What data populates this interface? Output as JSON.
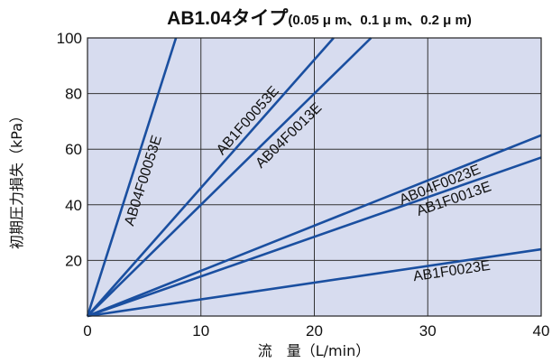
{
  "chart_data": {
    "type": "line",
    "title": "AB1.04タイプ",
    "subtitle": "(0.05 μ m、0.1 μ m、0.2 μ m)",
    "xlabel": "流　量（L/min）",
    "ylabel": "初期圧力損失（kPa）",
    "xlim": [
      0,
      40
    ],
    "ylim": [
      0,
      100
    ],
    "x_ticks": [
      "0",
      "10",
      "20",
      "30",
      "40"
    ],
    "y_ticks": [
      "20",
      "40",
      "60",
      "80",
      "100"
    ],
    "grid": true,
    "legend": "inline labels along each line",
    "plot_background": "#d7dcef",
    "line_color": "#1a4fa0",
    "series": [
      {
        "name": "AB04F00053E",
        "x": [
          0,
          7.8
        ],
        "y": [
          0,
          100
        ]
      },
      {
        "name": "AB1F00053E",
        "x": [
          0,
          21.7
        ],
        "y": [
          0,
          100
        ]
      },
      {
        "name": "AB04F0013E",
        "x": [
          0,
          25
        ],
        "y": [
          0,
          100
        ]
      },
      {
        "name": "AB04F0023E",
        "x": [
          0,
          40
        ],
        "y": [
          0,
          65
        ]
      },
      {
        "name": "AB1F0013E",
        "x": [
          0,
          40
        ],
        "y": [
          0,
          57
        ]
      },
      {
        "name": "AB1F0023E",
        "x": [
          0,
          40
        ],
        "y": [
          0,
          24
        ]
      }
    ]
  }
}
